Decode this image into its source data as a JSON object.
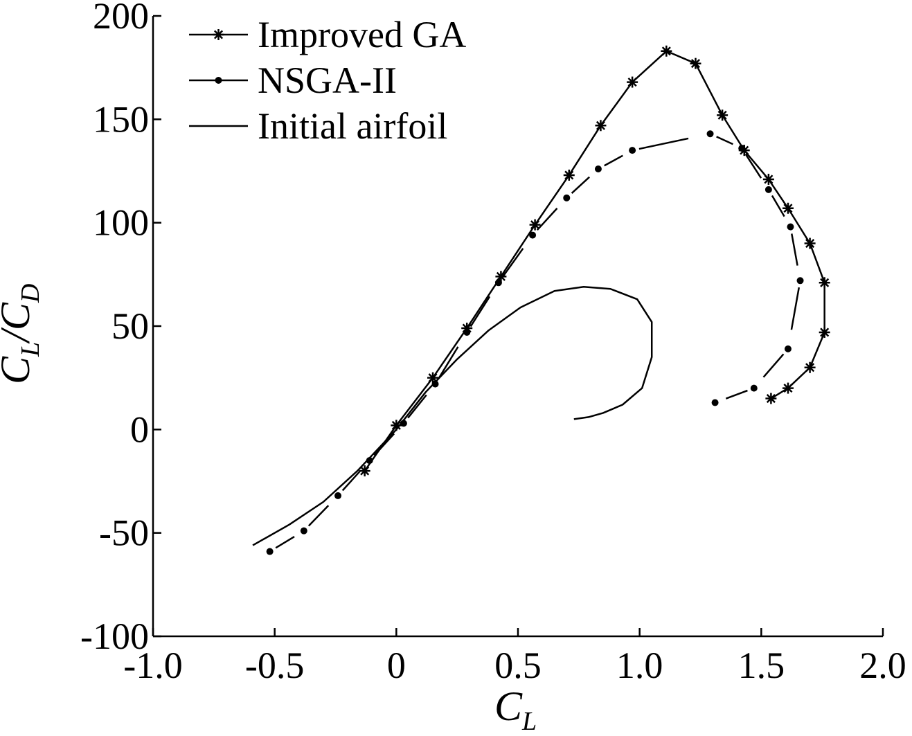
{
  "chart_data": {
    "type": "line",
    "title": "",
    "xlabel": {
      "main": "C",
      "sub": "L"
    },
    "ylabel": {
      "num": "C",
      "num_sub": "L",
      "slash": "/",
      "den": "C",
      "den_sub": "D"
    },
    "xlim": [
      -1.0,
      2.0
    ],
    "ylim": [
      -100,
      200
    ],
    "xticks": [
      -1.0,
      -0.5,
      0,
      0.5,
      1.0,
      1.5,
      2.0
    ],
    "xtick_labels": [
      "-1.0",
      "-0.5",
      "0",
      "0.5",
      "1.0",
      "1.5",
      "2.0"
    ],
    "yticks": [
      -100,
      -50,
      0,
      50,
      100,
      150,
      200
    ],
    "ytick_labels": [
      "-100",
      "-50",
      "0",
      "50",
      "100",
      "150",
      "200"
    ],
    "grid": false,
    "legend_position": "top-left",
    "series": [
      {
        "name": "Improved GA",
        "marker": "asterisk",
        "dashed": false,
        "x": [
          -0.13,
          0.0,
          0.15,
          0.29,
          0.43,
          0.57,
          0.71,
          0.84,
          0.97,
          1.11,
          1.23,
          1.34,
          1.43,
          1.53,
          1.61,
          1.7,
          1.76,
          1.76,
          1.7,
          1.61,
          1.54
        ],
        "y": [
          -20,
          2,
          25,
          49,
          74,
          99,
          123,
          147,
          168,
          183,
          177,
          152,
          135,
          121,
          107,
          90,
          71,
          47,
          30,
          20,
          15
        ]
      },
      {
        "name": "NSGA-II",
        "marker": "dot",
        "dashed": true,
        "x": [
          -0.52,
          -0.38,
          -0.24,
          -0.11,
          0.03,
          0.16,
          0.29,
          0.42,
          0.56,
          0.7,
          0.83,
          0.97,
          1.29,
          1.42,
          1.53,
          1.62,
          1.66,
          1.61,
          1.47,
          1.31
        ],
        "y": [
          -59,
          -49,
          -32,
          -15,
          3,
          22,
          47,
          71,
          94,
          112,
          126,
          135,
          143,
          136,
          116,
          98,
          72,
          39,
          20,
          13
        ]
      },
      {
        "name": "Initial airfoil",
        "marker": "none",
        "dashed": false,
        "x": [
          -0.59,
          -0.44,
          -0.3,
          -0.16,
          0.0,
          0.12,
          0.25,
          0.38,
          0.51,
          0.65,
          0.77,
          0.88,
          0.99,
          1.05,
          1.05,
          1.01,
          0.93,
          0.85,
          0.79,
          0.73
        ],
        "y": [
          -56,
          -46,
          -35,
          -20,
          0,
          18,
          34,
          48,
          59,
          67,
          69,
          68,
          63,
          52,
          35,
          20,
          12,
          8,
          6,
          5
        ]
      }
    ]
  }
}
